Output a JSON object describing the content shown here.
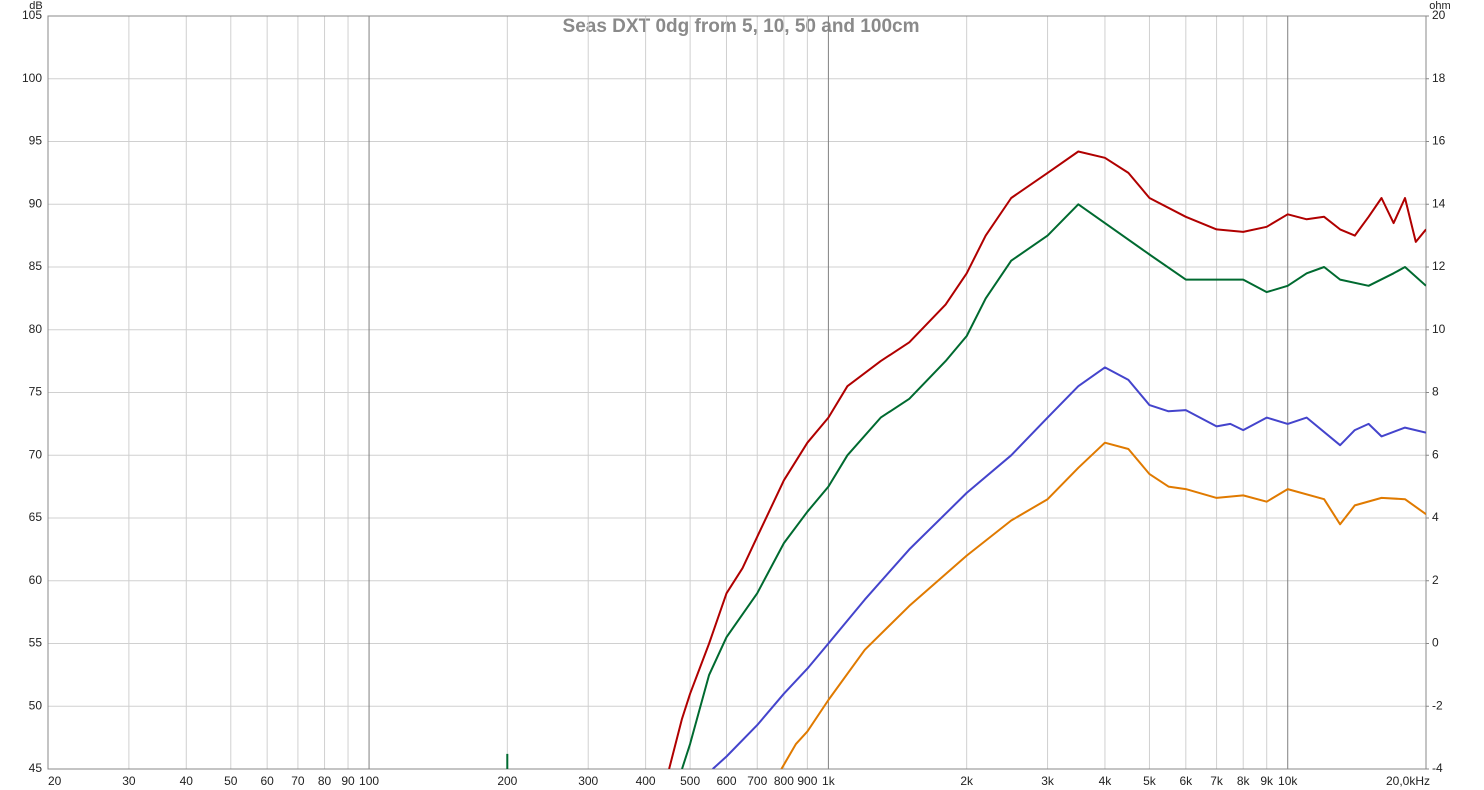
{
  "chart_data": {
    "type": "line",
    "title": "Seas DXT 0dg from 5, 10, 50 and 100cm",
    "y_label": "dB",
    "y2_label": "ohm",
    "x_log": true,
    "grid": true,
    "xlim": [
      20,
      20000
    ],
    "xticks": [
      20,
      30,
      40,
      50,
      60,
      70,
      80,
      90,
      100,
      200,
      300,
      400,
      500,
      600,
      700,
      800,
      900,
      {
        "value": 1000,
        "label": "1k"
      },
      {
        "value": 2000,
        "label": "2k"
      },
      {
        "value": 3000,
        "label": "3k"
      },
      {
        "value": 4000,
        "label": "4k"
      },
      {
        "value": 5000,
        "label": "5k"
      },
      {
        "value": 6000,
        "label": "6k"
      },
      {
        "value": 7000,
        "label": "7k"
      },
      {
        "value": 8000,
        "label": "8k"
      },
      {
        "value": 9000,
        "label": "9k"
      },
      {
        "value": 10000,
        "label": "10k"
      },
      {
        "value": 20000,
        "label": "20,0kHz"
      }
    ],
    "ylim": [
      45,
      105
    ],
    "yticks": [
      45,
      50,
      55,
      60,
      65,
      70,
      75,
      80,
      85,
      90,
      95,
      100,
      105
    ],
    "y2lim": [
      -4,
      20
    ],
    "y2ticks": [
      -4,
      -2,
      0,
      2,
      4,
      6,
      8,
      10,
      12,
      14,
      16,
      18,
      20
    ],
    "series": [
      {
        "color": "#b00000",
        "x": [
          450,
          480,
          500,
          550,
          600,
          650,
          700,
          800,
          900,
          1000,
          1100,
          1300,
          1500,
          1800,
          2000,
          2200,
          2500,
          3000,
          3500,
          4000,
          4500,
          5000,
          6000,
          7000,
          8000,
          9000,
          10000,
          11000,
          12000,
          13000,
          14000,
          15000,
          16000,
          17000,
          18000,
          19000,
          20000
        ],
        "values": [
          45,
          49,
          51,
          55,
          59,
          61,
          63.5,
          68,
          71,
          73,
          75.5,
          77.5,
          79,
          82,
          84.5,
          87.5,
          90.5,
          92.5,
          94.2,
          93.7,
          92.5,
          90.5,
          89,
          88,
          87.8,
          88.2,
          89.2,
          88.8,
          89,
          88,
          87.5,
          89,
          90.5,
          88.5,
          90.5,
          87,
          88
        ]
      },
      {
        "color": "#006a30",
        "x": [
          200,
          200,
          201,
          480,
          500,
          550,
          600,
          700,
          800,
          900,
          1000,
          1100,
          1300,
          1500,
          1800,
          2000,
          2200,
          2500,
          3000,
          3500,
          4000,
          5000,
          6000,
          7000,
          8000,
          9000,
          10000,
          11000,
          12000,
          13000,
          15000,
          17000,
          18000,
          20000
        ],
        "values": [
          45,
          46.2,
          null,
          45,
          47,
          52.5,
          55.5,
          59,
          63,
          65.5,
          67.5,
          70,
          73,
          74.5,
          77.5,
          79.5,
          82.5,
          85.5,
          87.5,
          90,
          88.5,
          86,
          84,
          84,
          84,
          83,
          83.5,
          84.5,
          85,
          84,
          83.5,
          84.5,
          85,
          83.5
        ]
      },
      {
        "color": "#4444cc",
        "x": [
          560,
          600,
          700,
          800,
          900,
          1000,
          1200,
          1500,
          2000,
          2500,
          3000,
          3500,
          4000,
          4500,
          5000,
          5500,
          6000,
          7000,
          7500,
          8000,
          9000,
          10000,
          11000,
          13000,
          14000,
          15000,
          16000,
          18000,
          20000
        ],
        "values": [
          45,
          46,
          48.5,
          51,
          53,
          55,
          58.5,
          62.5,
          67,
          70,
          73,
          75.5,
          77,
          76,
          74,
          73.5,
          73.6,
          72.3,
          72.5,
          72,
          73,
          72.5,
          73,
          70.8,
          72,
          72.5,
          71.5,
          72.2,
          71.8
        ]
      },
      {
        "color": "#e07a00",
        "x": [
          790,
          850,
          900,
          1000,
          1200,
          1500,
          2000,
          2500,
          3000,
          3500,
          4000,
          4500,
          5000,
          5500,
          6000,
          7000,
          8000,
          9000,
          10000,
          12000,
          13000,
          14000,
          16000,
          18000,
          20000
        ],
        "values": [
          45,
          47,
          48,
          50.5,
          54.5,
          58,
          62,
          64.8,
          66.5,
          69,
          71,
          70.5,
          68.5,
          67.5,
          67.3,
          66.6,
          66.8,
          66.3,
          67.3,
          66.5,
          64.5,
          66,
          66.6,
          66.5,
          65.3
        ]
      }
    ]
  }
}
